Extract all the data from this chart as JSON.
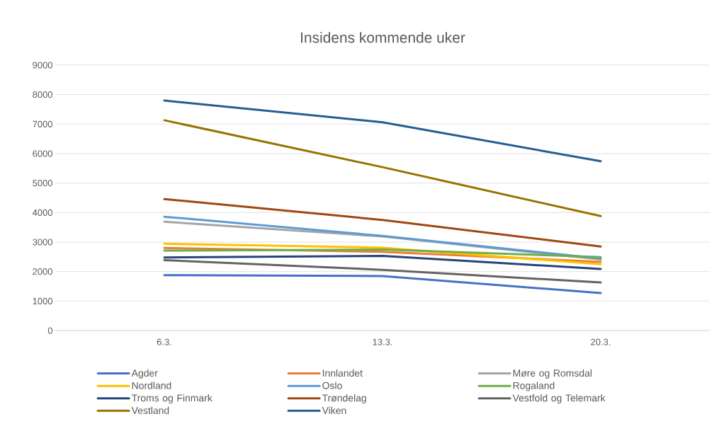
{
  "chart_data": {
    "type": "line",
    "title": "Insidens kommende uker",
    "categories": [
      "6.3.",
      "13.3.",
      "20.3."
    ],
    "series": [
      {
        "name": "Agder",
        "color": "#4472c4",
        "values": [
          1880,
          1850,
          1270
        ]
      },
      {
        "name": "Innlandet",
        "color": "#ed7d31",
        "values": [
          2800,
          2670,
          2330
        ]
      },
      {
        "name": "Møre og Romsdal",
        "color": "#a5a5a5",
        "values": [
          3690,
          3190,
          2410
        ]
      },
      {
        "name": "Nordland",
        "color": "#ffc000",
        "values": [
          2945,
          2810,
          2250
        ]
      },
      {
        "name": "Oslo",
        "color": "#5b9bd5",
        "values": [
          3860,
          3210,
          2440
        ]
      },
      {
        "name": "Rogaland",
        "color": "#70ad47",
        "values": [
          2710,
          2745,
          2490
        ]
      },
      {
        "name": "Troms og Finmark",
        "color": "#264478",
        "values": [
          2480,
          2530,
          2090
        ]
      },
      {
        "name": "Trøndelag",
        "color": "#9e480e",
        "values": [
          4460,
          3750,
          2850
        ]
      },
      {
        "name": "Vestfold og Telemark",
        "color": "#636363",
        "values": [
          2390,
          2060,
          1630
        ]
      },
      {
        "name": "Vestland",
        "color": "#997300",
        "values": [
          7130,
          5540,
          3880
        ]
      },
      {
        "name": "Viken",
        "color": "#255e91",
        "values": [
          7800,
          7060,
          5740
        ]
      }
    ],
    "ylim": [
      0,
      9000
    ],
    "yticks": [
      0,
      1000,
      2000,
      3000,
      4000,
      5000,
      6000,
      7000,
      8000,
      9000
    ],
    "grid": "y",
    "legend": "bottom",
    "marker": "none",
    "line_style": "solid"
  }
}
